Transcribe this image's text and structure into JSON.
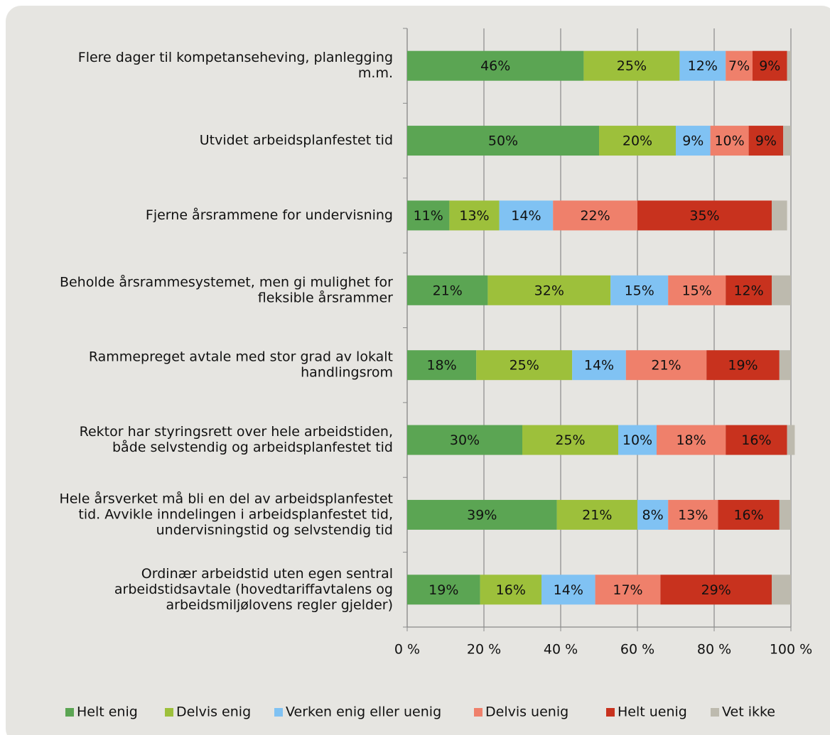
{
  "chart_data": {
    "type": "stacked-bar-horizontal",
    "categories": [
      [
        "Flere dager til kompetanseheving, planlegging",
        "m.m."
      ],
      [
        "Utvidet arbeidsplanfestet tid"
      ],
      [
        "Fjerne årsrammene for undervisning"
      ],
      [
        "Beholde årsrammesystemet, men gi mulighet for",
        "fleksible årsrammer"
      ],
      [
        "Rammepreget avtale med stor grad av lokalt",
        "handlingsrom"
      ],
      [
        "Rektor har styringsrett over hele arbeidstiden,",
        "både selvstendig og arbeidsplanfestet tid"
      ],
      [
        "Hele årsverket må bli en del av arbeidsplanfestet",
        "tid. Avvikle inndelingen i arbeidsplanfestet tid,",
        "undervisningstid og selvstendig tid"
      ],
      [
        "Ordinær arbeidstid uten egen sentral",
        "arbeidstidsavtale (hovedtariffavtalens og",
        "arbeidsmiljølovens regler gjelder)"
      ]
    ],
    "series": [
      {
        "name": "Helt enig",
        "color": "#5ba553",
        "values": [
          46,
          50,
          11,
          21,
          18,
          30,
          39,
          19
        ],
        "value_labels": [
          "46%",
          "50%",
          "11%",
          "21%",
          "18%",
          "30%",
          "39%",
          "19%"
        ]
      },
      {
        "name": "Delvis enig",
        "color": "#9dc03b",
        "values": [
          25,
          20,
          13,
          32,
          25,
          25,
          21,
          16
        ],
        "value_labels": [
          "25%",
          "20%",
          "13%",
          "32%",
          "25%",
          "25%",
          "21%",
          "16%"
        ]
      },
      {
        "name": "Verken enig eller uenig",
        "color": "#80c2f3",
        "values": [
          12,
          9,
          14,
          15,
          14,
          10,
          8,
          14
        ],
        "value_labels": [
          "12%",
          "9%",
          "14%",
          "15%",
          "14%",
          "10%",
          "8%",
          "14%"
        ]
      },
      {
        "name": "Delvis uenig",
        "color": "#ef806b",
        "values": [
          7,
          10,
          22,
          15,
          21,
          18,
          13,
          17
        ],
        "value_labels": [
          "7%",
          "10%",
          "22%",
          "15%",
          "21%",
          "18%",
          "13%",
          "17%"
        ]
      },
      {
        "name": "Helt uenig",
        "color": "#c8321e",
        "values": [
          9,
          9,
          35,
          12,
          19,
          16,
          16,
          29
        ],
        "value_labels": [
          "9%",
          "9%",
          "35%",
          "12%",
          "19%",
          "16%",
          "16%",
          "29%"
        ]
      },
      {
        "name": "Vet ikke",
        "color": "#bdbaae",
        "values": [
          1,
          2,
          4,
          5,
          3,
          2,
          3,
          5
        ]
      }
    ],
    "xlim": [
      0,
      100
    ],
    "xticks": [
      {
        "value": 0,
        "label": "0 %"
      },
      {
        "value": 20,
        "label": "20 %"
      },
      {
        "value": 40,
        "label": "40 %"
      },
      {
        "value": 60,
        "label": "60 %"
      },
      {
        "value": 80,
        "label": "80 %"
      },
      {
        "value": 100,
        "label": "100 %"
      }
    ],
    "grid": true,
    "legend": "bottom"
  }
}
